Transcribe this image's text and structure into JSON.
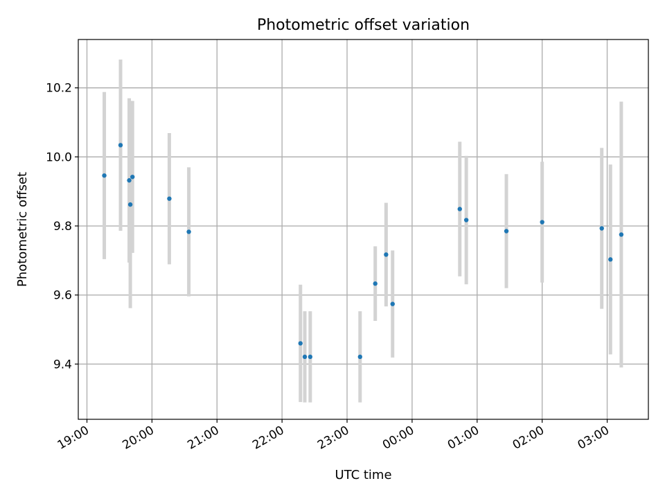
{
  "chart_data": {
    "type": "scatter",
    "title": "Photometric offset variation",
    "xlabel": "UTC time",
    "ylabel": "Photometric offset",
    "grid": true,
    "colors": {
      "point": "#1f77b4",
      "errorbar": "#d3d3d3",
      "grid": "#b0b0b0"
    },
    "x_tick_labels": [
      "19:00",
      "20:00",
      "21:00",
      "22:00",
      "23:00",
      "00:00",
      "01:00",
      "02:00",
      "03:00"
    ],
    "y_tick_labels": [
      "9.4",
      "9.6",
      "9.8",
      "10.0",
      "10.2"
    ],
    "y_ticks": [
      9.4,
      9.6,
      9.8,
      10.0,
      10.2
    ],
    "ylim": [
      9.24,
      10.34
    ],
    "xlim_time": [
      "18:52",
      "03:38"
    ],
    "points": [
      {
        "time": "19:16",
        "y": 9.946,
        "err": 0.242
      },
      {
        "time": "19:31",
        "y": 10.034,
        "err": 0.248
      },
      {
        "time": "19:39",
        "y": 9.932,
        "err": 0.238
      },
      {
        "time": "19:40",
        "y": 9.862,
        "err": 0.3
      },
      {
        "time": "19:42",
        "y": 9.942,
        "err": 0.22
      },
      {
        "time": "20:16",
        "y": 9.879,
        "err": 0.19
      },
      {
        "time": "20:34",
        "y": 9.783,
        "err": 0.187
      },
      {
        "time": "22:17",
        "y": 9.46,
        "err": 0.17
      },
      {
        "time": "22:21",
        "y": 9.421,
        "err": 0.132
      },
      {
        "time": "22:26",
        "y": 9.421,
        "err": 0.132
      },
      {
        "time": "23:12",
        "y": 9.421,
        "err": 0.132
      },
      {
        "time": "23:26",
        "y": 9.633,
        "err": 0.108
      },
      {
        "time": "23:36",
        "y": 9.717,
        "err": 0.15
      },
      {
        "time": "23:42",
        "y": 9.574,
        "err": 0.155
      },
      {
        "time": "00:44",
        "y": 9.849,
        "err": 0.195
      },
      {
        "time": "00:50",
        "y": 9.817,
        "err": 0.186
      },
      {
        "time": "01:27",
        "y": 9.785,
        "err": 0.165
      },
      {
        "time": "02:00",
        "y": 9.811,
        "err": 0.175
      },
      {
        "time": "02:55",
        "y": 9.793,
        "err": 0.233
      },
      {
        "time": "03:03",
        "y": 9.703,
        "err": 0.275
      },
      {
        "time": "03:13",
        "y": 9.775,
        "err": 0.385
      }
    ]
  }
}
